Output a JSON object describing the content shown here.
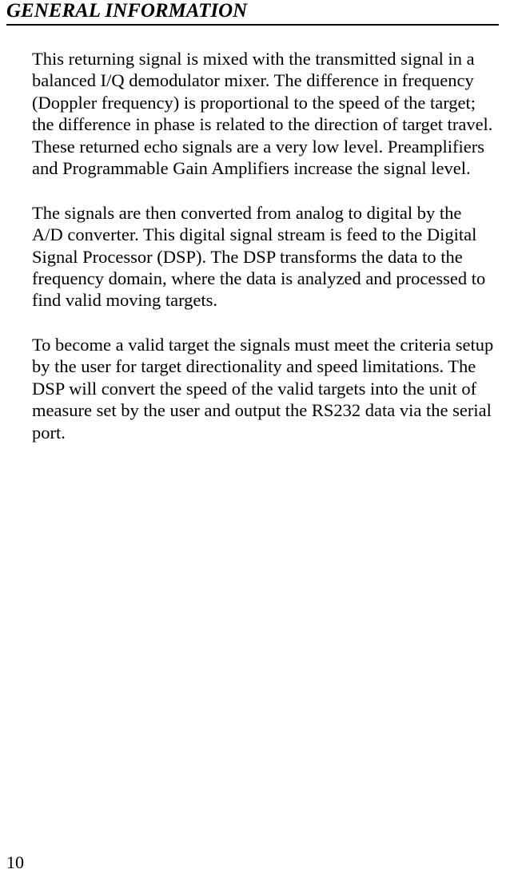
{
  "header": {
    "title": "GENERAL INFORMATION"
  },
  "body": {
    "paragraphs": [
      "This returning signal is mixed with the transmitted signal in a balanced I/Q demodulator mixer.  The difference in frequency (Doppler frequency) is proportional to the speed of the target; the difference in phase is related to the direction of target travel.  These returned echo signals are a very low level.  Preamplifiers and Programmable Gain Amplifiers increase the signal level.",
      "The signals are then converted from analog to digital by the A/D converter.  This digital signal stream is feed to the Digital Signal Processor (DSP).  The DSP transforms the data to the frequency domain, where the data is analyzed and processed to find valid moving targets.",
      "To become a valid target the signals must meet the criteria setup by the user for target directionality and speed limitations.  The DSP will convert the speed of the valid targets into the unit of measure set by the user and output the RS232 data via the serial port."
    ]
  },
  "footer": {
    "page_number": "10"
  }
}
